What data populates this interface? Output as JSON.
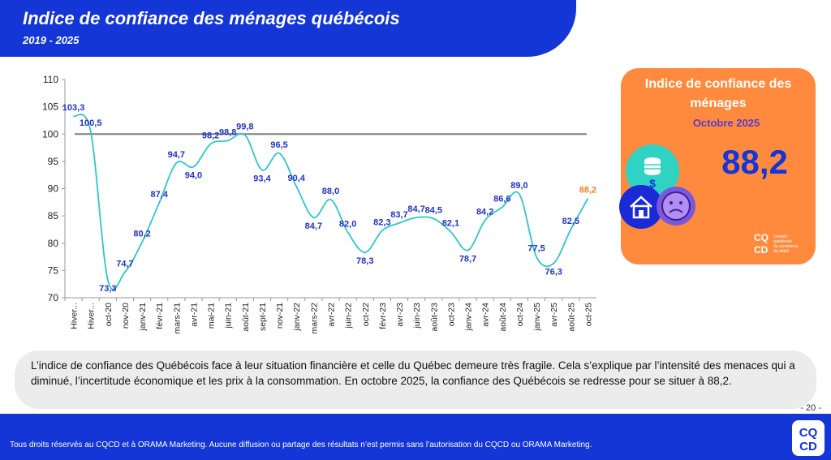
{
  "header": {
    "title": "Indice de confiance des ménages québécois",
    "subtitle": "2019 - 2025"
  },
  "chart_data": {
    "type": "line",
    "title": "",
    "xlabel": "",
    "ylabel": "",
    "ylim": [
      70,
      110
    ],
    "yticks": [
      70,
      75,
      80,
      85,
      90,
      95,
      100,
      105,
      110
    ],
    "reference_line": 100,
    "grid": false,
    "x": [
      "Hiver...",
      "Hiver...",
      "oct-20",
      "nov-20",
      "janv-21",
      "févr-21",
      "mars-21",
      "avr-21",
      "mai-21",
      "juin-21",
      "août-21",
      "sept-21",
      "nov-21",
      "janv-22",
      "mars-22",
      "avr-22",
      "juin-22",
      "oct-22",
      "févr-23",
      "avr-23",
      "juin-23",
      "août-23",
      "oct-23",
      "janv-24",
      "avr-24",
      "août-24",
      "oct-24",
      "janv-25",
      "avr-25",
      "août-25",
      "oct-25"
    ],
    "series": [
      {
        "color": "#2ec7c9",
        "values": [
          103.3,
          100.5,
          73.3,
          74.7,
          80.2,
          87.4,
          94.7,
          94.0,
          98.2,
          98.8,
          99.8,
          93.4,
          96.5,
          90.4,
          84.7,
          88.0,
          82.0,
          78.3,
          82.3,
          83.7,
          84.7,
          84.5,
          82.1,
          78.7,
          84.2,
          86.6,
          89.0,
          77.5,
          76.3,
          82.5,
          88.2
        ],
        "labels": [
          "103,3",
          "100,5",
          "73,3",
          "74,7",
          "80,2",
          "87,4",
          "94,7",
          "94,0",
          "98,2",
          "98,8",
          "99,8",
          "93,4",
          "96,5",
          "90,4",
          "84,7",
          "88,0",
          "82,0",
          "78,3",
          "82,3",
          "83,7",
          "84,7",
          "84,5",
          "82,1",
          "78,7",
          "84,2",
          "86,6",
          "89,0",
          "77,5",
          "76,3",
          "82,5",
          "88,2"
        ]
      }
    ],
    "label_color": "#2233cc",
    "last_label_color": "#ff7f27"
  },
  "card": {
    "title": "Indice de confiance des ménages",
    "subtitle": "Octobre 2025",
    "value": "88,2",
    "logo_text": "CQ CD",
    "logo_caption": "Conseil québécois du commerce de détail"
  },
  "comment": "L’indice de confiance des Québécois face à leur situation financière et celle du Québec demeure très fragile. Cela s’explique par l’intensité des menaces qui a diminué, l’incertitude économique et les prix à la consommation. En octobre 2025, la confiance des Québécois se redresse pour se situer à 88,2.",
  "page_number": "- 20 -",
  "footer": {
    "copyright": "Tous droits réservés au CQCD et à ORAMA Marketing. Aucune diffusion ou partage des résultats n’est permis sans l’autorisation du CQCD ou ORAMA Marketing.",
    "logo_text": "CQ CD"
  },
  "colors": {
    "brand_blue": "#1436d6",
    "orange": "#ff8a3d",
    "teal": "#2ed3c4",
    "purple": "#7b57dc"
  }
}
